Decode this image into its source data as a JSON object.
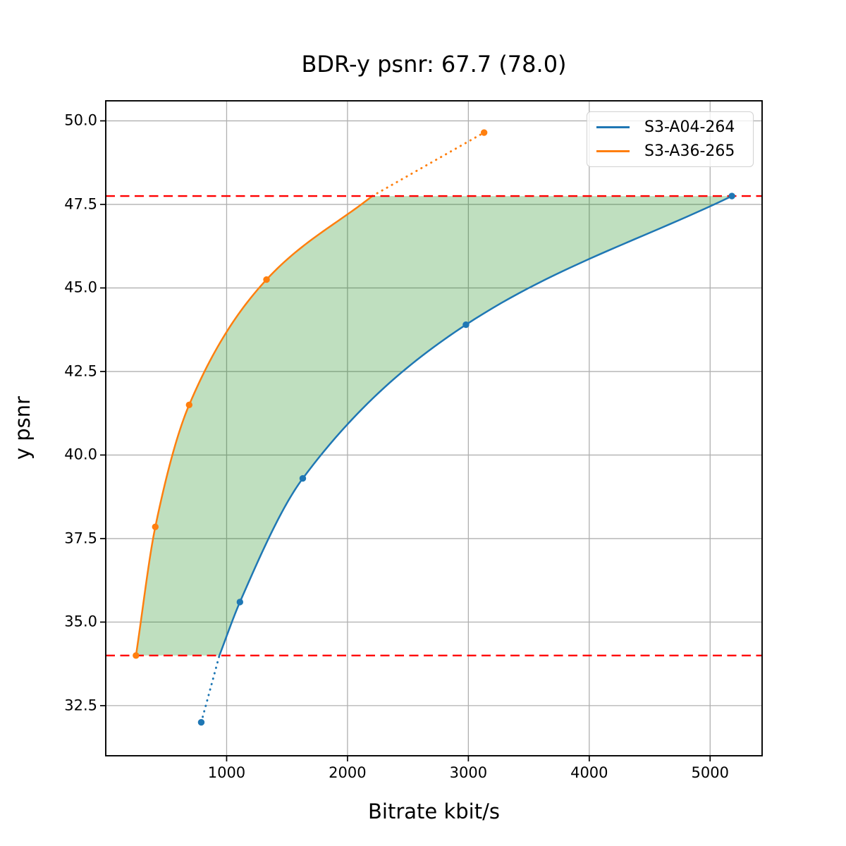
{
  "chart_data": {
    "type": "line",
    "title": "BDR-y psnr: 67.7 (78.0)",
    "xlabel": "Bitrate kbit/s",
    "ylabel": "y psnr",
    "xlim": [
      0,
      5430
    ],
    "ylim": [
      31.0,
      50.6
    ],
    "xticks": [
      1000,
      2000,
      3000,
      4000,
      5000
    ],
    "xtick_labels": [
      "1000",
      "2000",
      "3000",
      "4000",
      "5000"
    ],
    "yticks": [
      32.5,
      35.0,
      37.5,
      40.0,
      42.5,
      45.0,
      47.5,
      50.0
    ],
    "ytick_labels": [
      "32.5",
      "35.0",
      "37.5",
      "40.0",
      "42.5",
      "45.0",
      "47.5",
      "50.0"
    ],
    "grid": true,
    "grid_color": "#b0b0b0",
    "spine_color": "#000000",
    "legend_position": "upper right",
    "series": [
      {
        "name": "S3-A04-264",
        "color": "#1f77b4",
        "marker_points": [
          [
            790,
            32.0
          ],
          [
            1110,
            35.6
          ],
          [
            1630,
            39.3
          ],
          [
            2980,
            43.9
          ],
          [
            5180,
            47.75
          ]
        ],
        "solid_curve": [
          [
            940,
            34.0
          ],
          [
            1110,
            35.6
          ],
          [
            1630,
            39.3
          ],
          [
            2980,
            43.9
          ],
          [
            5180,
            47.75
          ]
        ],
        "dotted_segment": [
          [
            790,
            32.0
          ],
          [
            940,
            34.0
          ]
        ]
      },
      {
        "name": "S3-A36-265",
        "color": "#ff7f0e",
        "marker_points": [
          [
            250,
            34.0
          ],
          [
            410,
            37.85
          ],
          [
            690,
            41.5
          ],
          [
            1330,
            45.25
          ],
          [
            3130,
            49.65
          ]
        ],
        "solid_curve": [
          [
            250,
            34.0
          ],
          [
            410,
            37.85
          ],
          [
            690,
            41.5
          ],
          [
            1330,
            45.25
          ],
          [
            2205,
            47.75
          ]
        ],
        "dotted_segment": [
          [
            2205,
            47.75
          ],
          [
            3130,
            49.65
          ]
        ]
      }
    ],
    "hlines": [
      {
        "y": 47.75,
        "color": "#ff0000",
        "style": "dashed"
      },
      {
        "y": 34.0,
        "color": "#ff0000",
        "style": "dashed"
      }
    ],
    "fill_between": {
      "between": [
        "S3-A36-265",
        "S3-A04-264"
      ],
      "y_from": 34.0,
      "y_to": 47.75,
      "color": "#008000",
      "opacity": 0.25
    }
  }
}
